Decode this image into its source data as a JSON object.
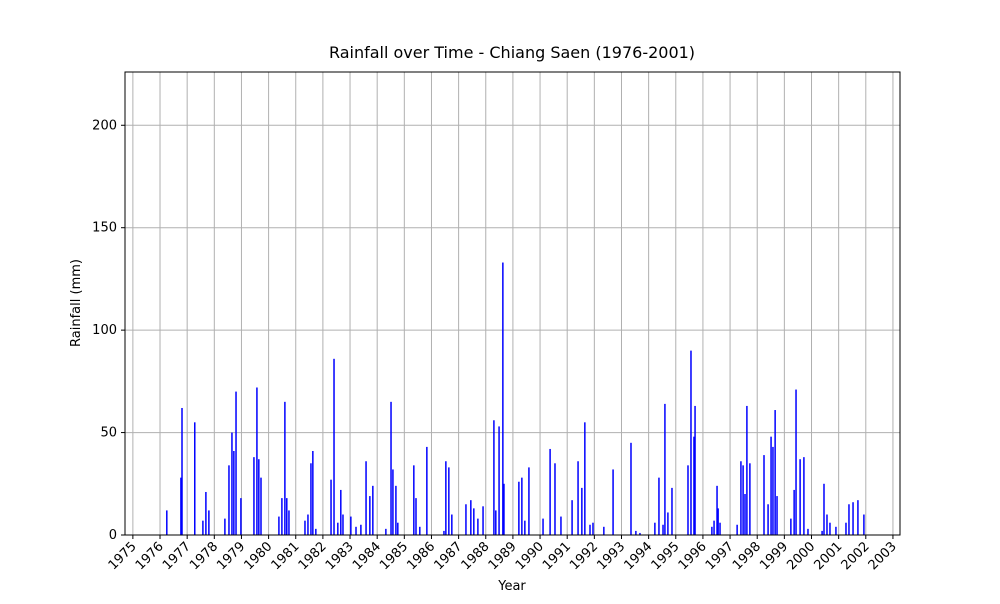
{
  "chart_data": {
    "type": "bar",
    "title": "Rainfall over Time - Chiang Saen (1976-2001)",
    "x_label": "Year",
    "y_label": "Rainfall (mm)",
    "color": "#0000ff",
    "grid": true,
    "xlim": [
      1974.71,
      2003.26
    ],
    "ylim": [
      0,
      226
    ],
    "xticks": [
      1975,
      1976,
      1977,
      1978,
      1979,
      1980,
      1981,
      1982,
      1983,
      1984,
      1985,
      1986,
      1987,
      1988,
      1989,
      1990,
      1991,
      1992,
      1993,
      1994,
      1995,
      1996,
      1997,
      1998,
      1999,
      2000,
      2001,
      2002,
      2003
    ],
    "yticks": [
      0,
      50,
      100,
      150,
      200
    ],
    "x": [
      1976.25,
      1976.77,
      1976.81,
      1977.28,
      1977.58,
      1977.69,
      1977.8,
      1978.39,
      1978.54,
      1978.65,
      1978.72,
      1978.8,
      1978.98,
      1979.46,
      1979.57,
      1979.64,
      1979.72,
      1980.38,
      1980.49,
      1980.6,
      1980.67,
      1980.75,
      1981.34,
      1981.45,
      1981.56,
      1981.63,
      1981.74,
      1982.3,
      1982.41,
      1982.55,
      1982.66,
      1982.74,
      1983.03,
      1983.22,
      1983.4,
      1983.59,
      1983.73,
      1983.84,
      1984.32,
      1984.51,
      1984.58,
      1984.69,
      1984.76,
      1985.35,
      1985.43,
      1985.57,
      1985.83,
      1986.46,
      1986.53,
      1986.64,
      1986.75,
      1987.27,
      1987.45,
      1987.56,
      1987.71,
      1987.9,
      1988.3,
      1988.37,
      1988.49,
      1988.63,
      1988.67,
      1989.22,
      1989.33,
      1989.44,
      1989.59,
      1990.11,
      1990.37,
      1990.55,
      1990.77,
      1991.18,
      1991.4,
      1991.54,
      1991.65,
      1991.84,
      1991.95,
      1992.35,
      1992.69,
      1993.35,
      1993.53,
      1993.68,
      1994.23,
      1994.38,
      1994.53,
      1994.6,
      1994.71,
      1994.86,
      1995.45,
      1995.56,
      1995.67,
      1995.71,
      1996.33,
      1996.41,
      1996.52,
      1996.56,
      1996.63,
      1997.26,
      1997.4,
      1997.48,
      1997.55,
      1997.62,
      1997.73,
      1998.25,
      1998.4,
      1998.51,
      1998.58,
      1998.66,
      1998.73,
      1999.24,
      1999.36,
      1999.43,
      1999.58,
      1999.72,
      1999.87,
      2000.39,
      2000.46,
      2000.57,
      2000.68,
      2000.9,
      2001.27,
      2001.38,
      2001.53,
      2001.71,
      2001.93
    ],
    "values": [
      12,
      28,
      62,
      55,
      7,
      21,
      12,
      8,
      34,
      50,
      41,
      70,
      18,
      38,
      72,
      37,
      28,
      9,
      18,
      65,
      18,
      12,
      7,
      10,
      35,
      41,
      3,
      27,
      86,
      6,
      22,
      10,
      9,
      4,
      5,
      36,
      19,
      24,
      3,
      65,
      32,
      24,
      6,
      34,
      18,
      4,
      43,
      2,
      36,
      33,
      10,
      15,
      17,
      13,
      8,
      14,
      56,
      12,
      53,
      133,
      25,
      26,
      28,
      7,
      33,
      8,
      42,
      35,
      9,
      17,
      36,
      23,
      55,
      5,
      6,
      4,
      32,
      45,
      2,
      1,
      6,
      28,
      5,
      64,
      11,
      23,
      34,
      90,
      48,
      63,
      4,
      7,
      24,
      13,
      6,
      5,
      36,
      34,
      20,
      63,
      35,
      39,
      15,
      48,
      43,
      61,
      19,
      8,
      22,
      71,
      37,
      38,
      3,
      2,
      25,
      10,
      6,
      4,
      6,
      15,
      16,
      17,
      10
    ]
  }
}
